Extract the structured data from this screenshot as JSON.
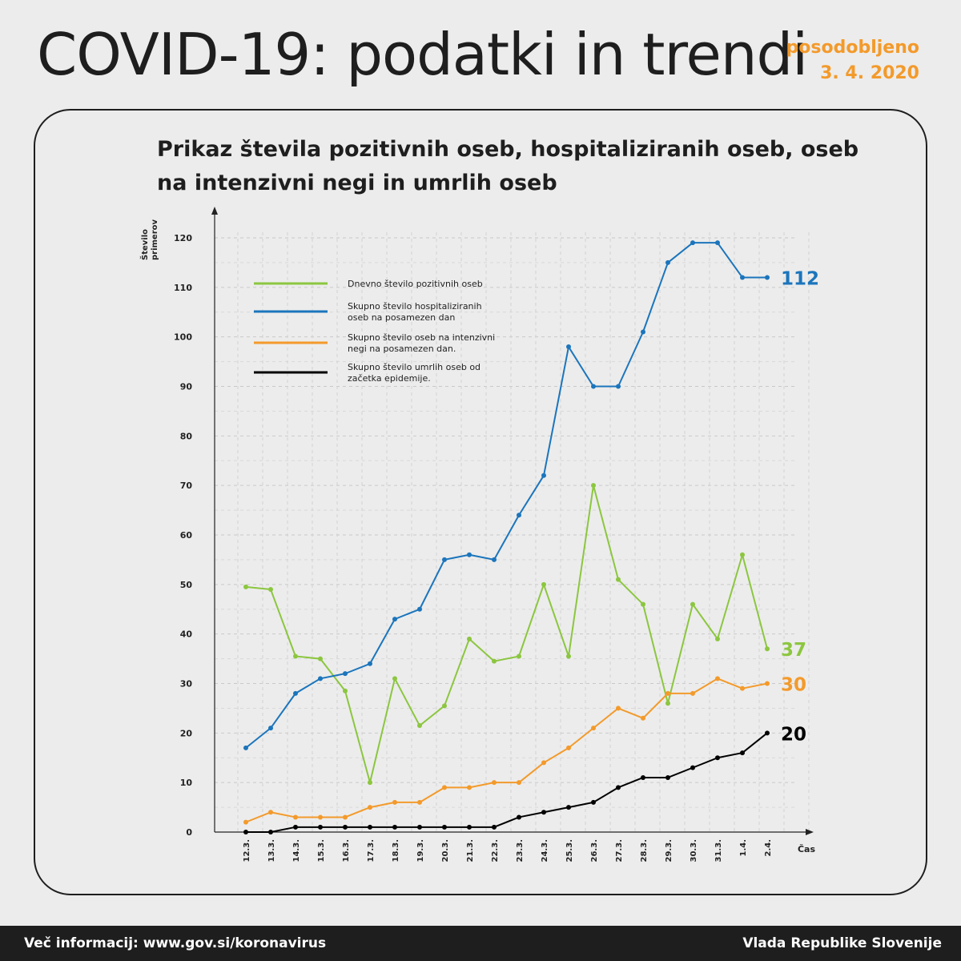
{
  "header": {
    "title": "COVID-19: podatki in trendi",
    "updated_label": "posodobljeno",
    "updated_date": "3. 4. 2020"
  },
  "chart_title_lines": [
    "Prikaz števila pozitivnih oseb, hospitaliziranih oseb, oseb",
    "na intenzivni negi in umrlih oseb"
  ],
  "footer": {
    "left": "Več informacij: www.gov.si/koronavirus",
    "right": "Vlada Republike Slovenije"
  },
  "chart_data": {
    "type": "line",
    "ylabel_lines": [
      "Število",
      "primerov"
    ],
    "xlabel": "Čas",
    "ylim": [
      0,
      120
    ],
    "yticks": [
      0,
      10,
      20,
      30,
      40,
      50,
      60,
      70,
      80,
      90,
      100,
      110,
      120
    ],
    "grid": true,
    "legend_position": "top-left",
    "categories": [
      "12.3.",
      "13.3.",
      "14.3.",
      "15.3.",
      "16.3.",
      "17.3.",
      "18.3.",
      "19.3.",
      "20.3.",
      "21.3.",
      "22.3.",
      "23.3.",
      "24.3.",
      "25.3.",
      "26.3.",
      "27.3.",
      "28.3.",
      "29.3.",
      "30.3.",
      "31.3.",
      "1.4.",
      "2.4."
    ],
    "series": [
      {
        "name_lines": [
          "Dnevno število pozitivnih oseb"
        ],
        "color": "#8cc63f",
        "end_label": "37",
        "values": [
          49.5,
          49,
          35.5,
          35,
          28.5,
          10,
          31,
          21.5,
          25.5,
          39,
          34.5,
          35.5,
          50,
          35.5,
          70,
          51,
          46,
          26,
          46,
          39,
          56,
          37
        ]
      },
      {
        "name_lines": [
          "Skupno število hospitaliziranih",
          "oseb na posamezen dan"
        ],
        "color": "#1b75bc",
        "end_label": "112",
        "values": [
          17,
          21,
          28,
          31,
          32,
          34,
          43,
          45,
          55,
          56,
          55,
          64,
          72,
          98,
          90,
          90,
          101,
          115,
          119,
          119,
          112,
          112
        ]
      },
      {
        "name_lines": [
          "Skupno število oseb na intenzivni",
          "negi na posamezen dan."
        ],
        "color": "#f39a2b",
        "end_label": "30",
        "values": [
          2,
          4,
          3,
          3,
          3,
          5,
          6,
          6,
          9,
          9,
          10,
          10,
          14,
          17,
          21,
          25,
          23,
          28,
          28,
          31,
          29,
          30
        ]
      },
      {
        "name_lines": [
          "Skupno število umrlih oseb od",
          "začetka epidemije."
        ],
        "color": "#000000",
        "end_label": "20",
        "values": [
          0,
          0,
          1,
          1,
          1,
          1,
          1,
          1,
          1,
          1,
          1,
          3,
          4,
          5,
          6,
          9,
          11,
          11,
          13,
          15,
          16,
          20
        ]
      }
    ]
  }
}
